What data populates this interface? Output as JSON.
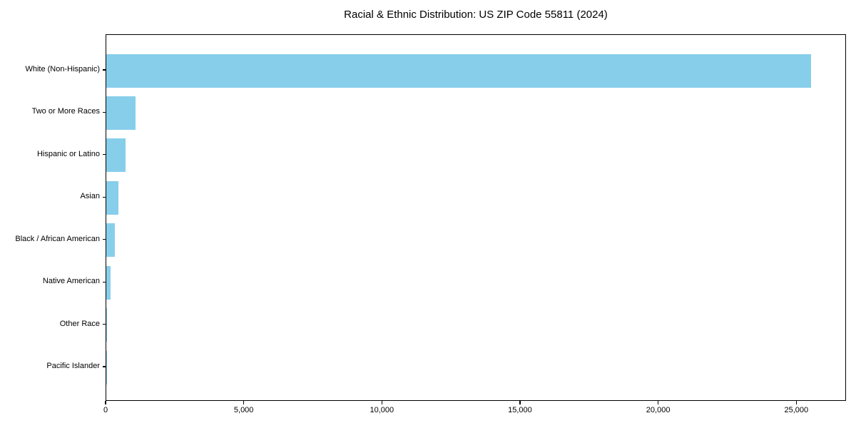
{
  "figure": {
    "background_color": "#ffffff",
    "text_color": "#000000"
  },
  "chart_data": {
    "type": "bar",
    "orientation": "horizontal",
    "title": "Racial & Ethnic Distribution: US ZIP Code 55811 (2024)",
    "categories": [
      "White (Non-Hispanic)",
      "Two or More Races",
      "Hispanic or Latino",
      "Asian",
      "Black / African American",
      "Native American",
      "Other Race",
      "Pacific Islander"
    ],
    "values": [
      25500,
      1050,
      710,
      450,
      300,
      145,
      30,
      10
    ],
    "bar_color": "#87CEEB",
    "xlabel": "",
    "ylabel": "",
    "xlim": [
      0,
      26800
    ],
    "x_ticks": [
      0,
      5000,
      10000,
      15000,
      20000,
      25000
    ],
    "x_tick_labels": [
      "0",
      "5,000",
      "10,000",
      "15,000",
      "20,000",
      "25,000"
    ],
    "grid": false,
    "legend": false
  }
}
